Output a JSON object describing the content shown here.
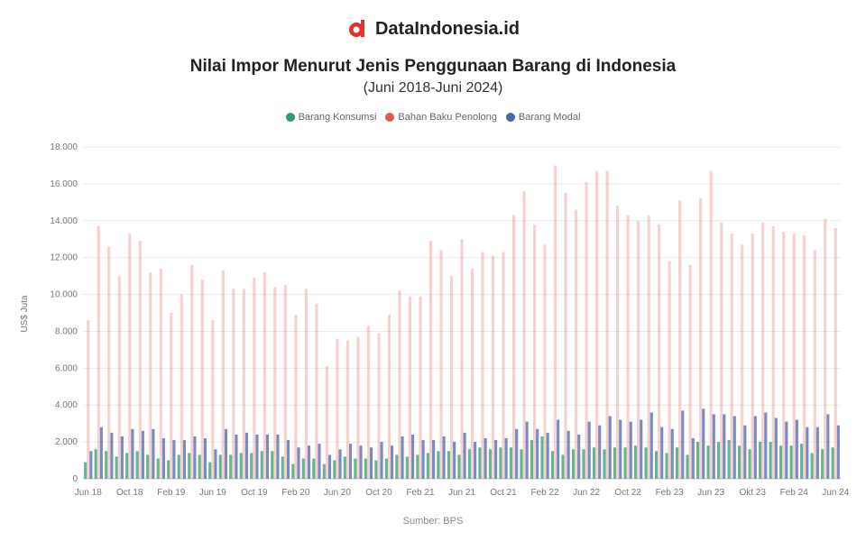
{
  "brand": {
    "name": "DataIndonesia.id",
    "logo_icon": "d-logo-icon",
    "logo_color": "#e2322b"
  },
  "source": "Sumber: BPS",
  "chart_data": {
    "type": "bar",
    "title": "Nilai Impor Menurut Jenis Penggunaan Barang di Indonesia",
    "subtitle": "(Juni 2018-Juni 2024)",
    "xlabel": "",
    "ylabel": "US$ Juta",
    "ylim": [
      0,
      18000
    ],
    "yticks": [
      0,
      2000,
      4000,
      6000,
      8000,
      10000,
      12000,
      14000,
      16000,
      18000
    ],
    "ytick_labels": [
      "0",
      "2.000",
      "4.000",
      "6.000",
      "8.000",
      "10.000",
      "12.000",
      "14.000",
      "16.000",
      "18.000"
    ],
    "grid": true,
    "legend_position": "top",
    "x_tick_labels": [
      "Jun 18",
      "Oct 18",
      "Feb 19",
      "Jun 19",
      "Oct 19",
      "Feb 20",
      "Jun 20",
      "Oct 20",
      "Feb 21",
      "Jun 21",
      "Oct 21",
      "Feb 22",
      "Jun 22",
      "Oct 22",
      "Feb 23",
      "Jun 23",
      "Okt 23",
      "Feb 24",
      "Jun 24"
    ],
    "x_tick_every": 4,
    "categories": [
      "Jun 18",
      "Jul 18",
      "Aug 18",
      "Sep 18",
      "Oct 18",
      "Nov 18",
      "Dec 18",
      "Jan 19",
      "Feb 19",
      "Mar 19",
      "Apr 19",
      "May 19",
      "Jun 19",
      "Jul 19",
      "Aug 19",
      "Sep 19",
      "Oct 19",
      "Nov 19",
      "Dec 19",
      "Jan 20",
      "Feb 20",
      "Mar 20",
      "Apr 20",
      "May 20",
      "Jun 20",
      "Jul 20",
      "Aug 20",
      "Sep 20",
      "Oct 20",
      "Nov 20",
      "Dec 20",
      "Jan 21",
      "Feb 21",
      "Mar 21",
      "Apr 21",
      "May 21",
      "Jun 21",
      "Jul 21",
      "Aug 21",
      "Sep 21",
      "Oct 21",
      "Nov 21",
      "Dec 21",
      "Jan 22",
      "Feb 22",
      "Mar 22",
      "Apr 22",
      "May 22",
      "Jun 22",
      "Jul 22",
      "Aug 22",
      "Sep 22",
      "Oct 22",
      "Nov 22",
      "Dec 22",
      "Jan 23",
      "Feb 23",
      "Mar 23",
      "Apr 23",
      "May 23",
      "Jun 23",
      "Jul 23",
      "Aug 23",
      "Sep 23",
      "Oct 23",
      "Nov 23",
      "Dec 23",
      "Jan 24",
      "Feb 24",
      "Mar 24",
      "Apr 24",
      "May 24",
      "Jun 24"
    ],
    "series": [
      {
        "name": "Barang Konsumsi",
        "color": "#2e9e6c",
        "values": [
          900,
          1600,
          1500,
          1200,
          1400,
          1500,
          1300,
          1100,
          1000,
          1300,
          1400,
          1300,
          900,
          1300,
          1300,
          1400,
          1400,
          1500,
          1500,
          1200,
          800,
          1100,
          1100,
          800,
          1000,
          1200,
          1100,
          1100,
          1000,
          1100,
          1300,
          1200,
          1300,
          1400,
          1500,
          1500,
          1300,
          1600,
          1700,
          1600,
          1700,
          1700,
          1600,
          2100,
          2300,
          1500,
          1300,
          1600,
          1600,
          1700,
          1600,
          1700,
          1700,
          1800,
          1700,
          1500,
          1400,
          1700,
          1300,
          2000,
          1800,
          2000,
          2100,
          1800,
          1600,
          2000,
          2000,
          1800,
          1800,
          1900,
          1400,
          1600,
          1700
        ]
      },
      {
        "name": "Bahan Baku Penolong",
        "color": "#e25a50",
        "values": [
          8600,
          13700,
          12600,
          11000,
          13300,
          12900,
          11200,
          11400,
          9000,
          10000,
          11600,
          10800,
          8600,
          11300,
          10300,
          10300,
          10900,
          11200,
          10400,
          10500,
          8900,
          10300,
          9500,
          6100,
          7600,
          7500,
          7700,
          8300,
          7900,
          8900,
          10200,
          9900,
          9900,
          12900,
          12400,
          11000,
          13000,
          11400,
          12300,
          12100,
          12300,
          14300,
          15600,
          13800,
          12700,
          17000,
          15500,
          14600,
          16100,
          16700,
          16700,
          14800,
          14300,
          14000,
          14300,
          13800,
          11800,
          15100,
          11600,
          15200,
          16700,
          13900,
          13300,
          12700,
          13300,
          13900,
          13700,
          13400,
          13300,
          13200,
          12400,
          14100,
          13600
        ]
      },
      {
        "name": "Barang Modal",
        "color": "#4a66ad",
        "values": [
          1500,
          2800,
          2500,
          2300,
          2700,
          2600,
          2700,
          2200,
          2100,
          2100,
          2300,
          2200,
          1600,
          2700,
          2400,
          2500,
          2400,
          2400,
          2400,
          2100,
          1700,
          1800,
          1900,
          1300,
          1600,
          1900,
          1800,
          1700,
          2000,
          1800,
          2300,
          2400,
          2100,
          2100,
          2300,
          2000,
          2500,
          2000,
          2200,
          2100,
          2200,
          2700,
          3100,
          2700,
          2500,
          3200,
          2600,
          2400,
          3100,
          2900,
          3400,
          3200,
          3100,
          3200,
          3600,
          2800,
          2700,
          3700,
          2200,
          3800,
          3500,
          3500,
          3400,
          2900,
          3400,
          3600,
          3300,
          3100,
          3200,
          2800,
          2800,
          3500,
          2900
        ]
      }
    ]
  }
}
